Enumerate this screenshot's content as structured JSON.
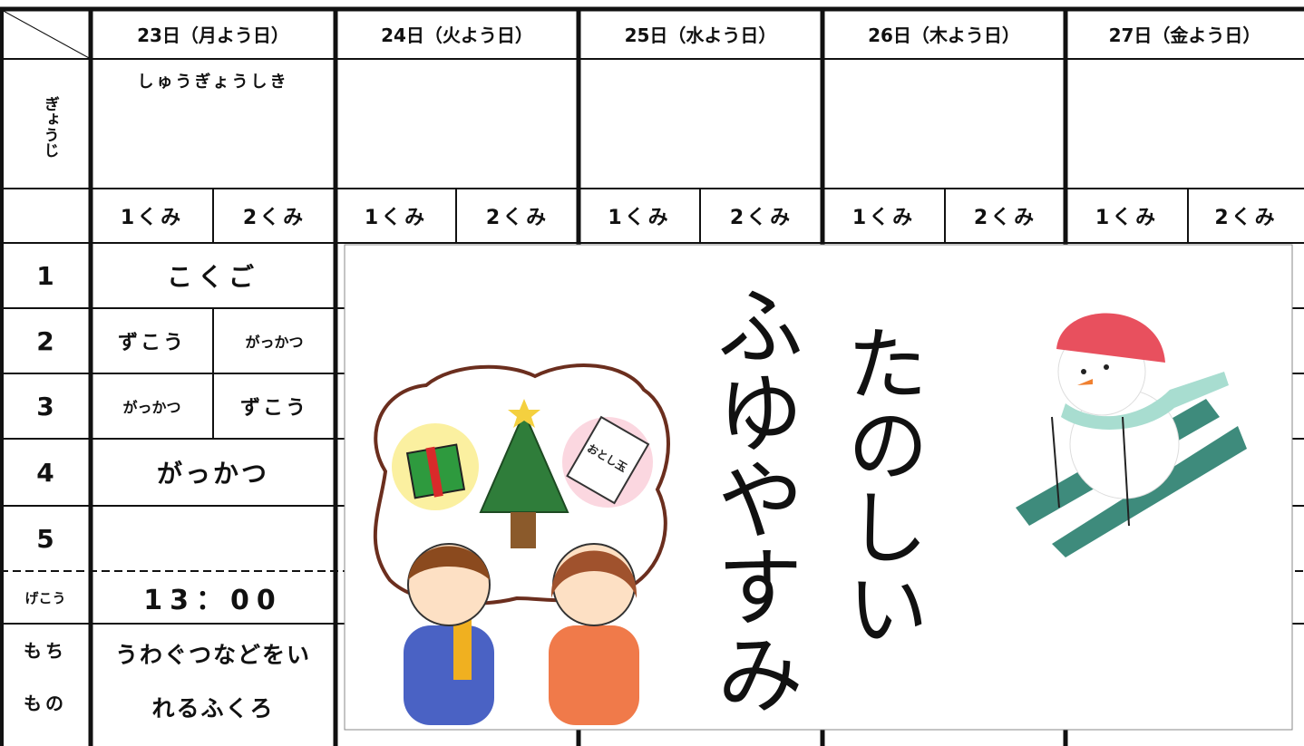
{
  "days": [
    "23日（月よう日）",
    "24日（火よう日）",
    "25日（水よう日）",
    "26日（木よう日）",
    "27日（金よう日）"
  ],
  "events": {
    "label": "ぎょうじ",
    "items": [
      "しゅうぎょうしき"
    ]
  },
  "classes": [
    "1くみ",
    "2くみ"
  ],
  "periods": [
    {
      "label": "1",
      "cells": [
        "こくご"
      ]
    },
    {
      "label": "2",
      "cells": [
        "ずこう",
        "がっかつ"
      ]
    },
    {
      "label": "3",
      "cells": [
        "がっかつ",
        "ずこう"
      ]
    },
    {
      "label": "4",
      "cells": [
        "がっかつ"
      ]
    },
    {
      "label": "5"
    }
  ],
  "dismissal": {
    "label": "げこう",
    "time": "13：00"
  },
  "belongings": {
    "label": [
      "もち",
      "もの"
    ],
    "items": [
      "うわぐつなどをい",
      "れるふくろ"
    ]
  },
  "banner": {
    "title": "ふゆやすみ",
    "subtitle": "たのしい",
    "envelope_text": "おとし玉"
  }
}
